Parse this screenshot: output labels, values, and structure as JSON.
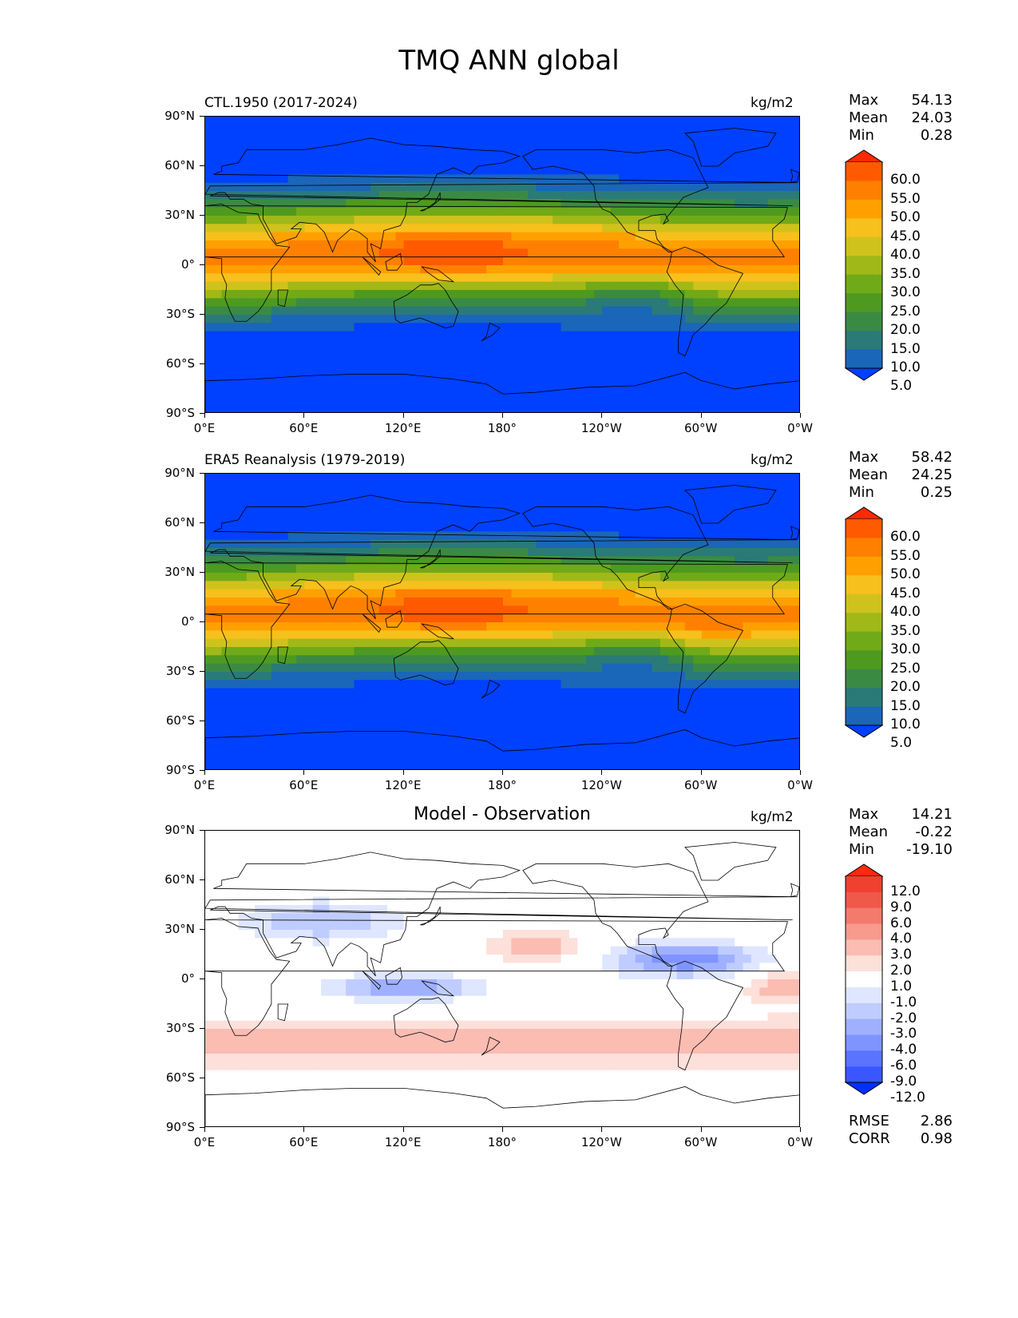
{
  "figure_title": "TMQ ANN global",
  "axes": {
    "lat_labels": [
      "90°N",
      "60°N",
      "30°N",
      "0°",
      "30°S",
      "60°S",
      "90°S"
    ],
    "lon_labels": [
      "0°E",
      "60°E",
      "120°E",
      "180°",
      "120°W",
      "60°W",
      "0°W"
    ]
  },
  "panels": [
    {
      "left_label": "CTL.1950 (2017-2024)",
      "center_title": "",
      "units": "kg/m2",
      "stats": [
        {
          "label": "Max",
          "value": "54.13"
        },
        {
          "label": "Mean",
          "value": "24.03"
        },
        {
          "label": "Min",
          "value": "0.28"
        }
      ],
      "colorbar_labels": [
        "60.0",
        "55.0",
        "50.0",
        "45.0",
        "40.0",
        "35.0",
        "30.0",
        "25.0",
        "20.0",
        "15.0",
        "10.0",
        "5.0"
      ],
      "colorbar_colors": [
        "#ff2a00",
        "#ff5a00",
        "#ff8000",
        "#ffa000",
        "#f7c01c",
        "#d0c21c",
        "#a0b818",
        "#70aa18",
        "#4e9a20",
        "#3b8a44",
        "#2a7a78",
        "#1a66b8",
        "#0040ff"
      ]
    },
    {
      "left_label": "ERA5 Reanalysis (1979-2019)",
      "center_title": "",
      "units": "kg/m2",
      "stats": [
        {
          "label": "Max",
          "value": "58.42"
        },
        {
          "label": "Mean",
          "value": "24.25"
        },
        {
          "label": "Min",
          "value": "0.25"
        }
      ],
      "colorbar_labels": [
        "60.0",
        "55.0",
        "50.0",
        "45.0",
        "40.0",
        "35.0",
        "30.0",
        "25.0",
        "20.0",
        "15.0",
        "10.0",
        "5.0"
      ],
      "colorbar_colors": [
        "#ff2a00",
        "#ff5a00",
        "#ff8000",
        "#ffa000",
        "#f7c01c",
        "#d0c21c",
        "#a0b818",
        "#70aa18",
        "#4e9a20",
        "#3b8a44",
        "#2a7a78",
        "#1a66b8",
        "#0040ff"
      ]
    },
    {
      "left_label": "",
      "center_title": "Model - Observation",
      "units": "kg/m2",
      "stats": [
        {
          "label": "Max",
          "value": "14.21"
        },
        {
          "label": "Mean",
          "value": "-0.22"
        },
        {
          "label": "Min",
          "value": "-19.10"
        }
      ],
      "colorbar_labels": [
        "12.0",
        "9.0",
        "6.0",
        "4.0",
        "3.0",
        "2.0",
        "1.0",
        "-1.0",
        "-2.0",
        "-3.0",
        "-4.0",
        "-6.0",
        "-9.0",
        "-12.0"
      ],
      "colorbar_colors": [
        "#ff2a10",
        "#f04030",
        "#f0584a",
        "#f47a6c",
        "#f89a8e",
        "#fbbcb2",
        "#fde0da",
        "#ffffff",
        "#dfe6ff",
        "#bfccff",
        "#9fb0ff",
        "#7f94ff",
        "#5a74ff",
        "#3a56ff",
        "#0030ff"
      ],
      "extra_stats": [
        {
          "label": "RMSE",
          "value": "2.86"
        },
        {
          "label": "CORR",
          "value": "0.98"
        }
      ]
    }
  ],
  "chart_data": {
    "type": "heatmap",
    "variable": "TMQ",
    "season": "ANN",
    "region": "global",
    "units": "kg/m2",
    "x_range": [
      0,
      360
    ],
    "y_range": [
      -90,
      90
    ],
    "panels": [
      {
        "name": "CTL.1950 (2017-2024)",
        "max": 54.13,
        "mean": 24.03,
        "min": 0.28,
        "levels": [
          5,
          10,
          15,
          20,
          25,
          30,
          35,
          40,
          45,
          50,
          55,
          60
        ]
      },
      {
        "name": "ERA5 Reanalysis (1979-2019)",
        "max": 58.42,
        "mean": 24.25,
        "min": 0.25,
        "levels": [
          5,
          10,
          15,
          20,
          25,
          30,
          35,
          40,
          45,
          50,
          55,
          60
        ]
      },
      {
        "name": "Model - Observation",
        "max": 14.21,
        "mean": -0.22,
        "min": -19.1,
        "rmse": 2.86,
        "corr": 0.98,
        "levels": [
          -12,
          -9,
          -6,
          -4,
          -3,
          -2,
          -1,
          1,
          2,
          3,
          4,
          6,
          9,
          12
        ]
      }
    ]
  }
}
